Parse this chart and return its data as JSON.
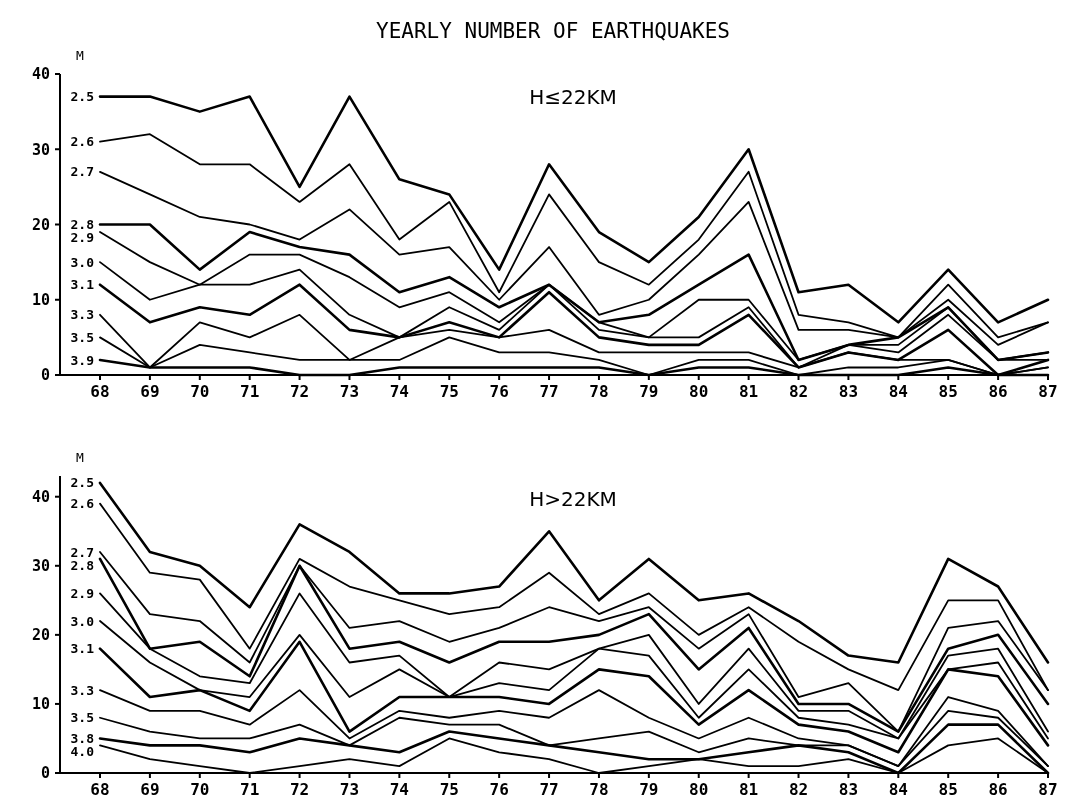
{
  "chart_data": [
    {
      "type": "line",
      "title": "YEARLY NUMBER OF EARTHQUAKES",
      "subtitle": "H≤22KM",
      "legend_title": "M",
      "categories": [
        "68",
        "69",
        "70",
        "71",
        "72",
        "73",
        "74",
        "75",
        "76",
        "77",
        "78",
        "79",
        "80",
        "81",
        "82",
        "83",
        "84",
        "85",
        "86",
        "87"
      ],
      "ylim": [
        0,
        40
      ],
      "yticks": [
        0,
        10,
        20,
        30,
        40
      ],
      "grid": false,
      "series": [
        {
          "name": "2.5",
          "color": "#000000",
          "values": [
            37,
            37,
            35,
            37,
            25,
            37,
            26,
            24,
            14,
            28,
            19,
            15,
            21,
            30,
            11,
            12,
            7,
            14,
            7,
            10
          ]
        },
        {
          "name": "2.6",
          "color": "#000000",
          "values": [
            31,
            32,
            28,
            28,
            23,
            28,
            18,
            23,
            11,
            24,
            15,
            12,
            18,
            27,
            8,
            7,
            5,
            12,
            5,
            7
          ]
        },
        {
          "name": "2.7",
          "color": "#000000",
          "values": [
            27,
            24,
            21,
            20,
            18,
            22,
            16,
            17,
            10,
            17,
            8,
            10,
            16,
            23,
            6,
            6,
            5,
            10,
            4,
            7
          ]
        },
        {
          "name": "2.8",
          "color": "#000000",
          "values": [
            20,
            20,
            14,
            19,
            17,
            16,
            11,
            13,
            9,
            12,
            7,
            8,
            12,
            16,
            2,
            4,
            5,
            9,
            2,
            3
          ]
        },
        {
          "name": "2.9",
          "color": "#000000",
          "values": [
            19,
            15,
            12,
            16,
            16,
            13,
            9,
            11,
            7,
            12,
            7,
            5,
            10,
            10,
            2,
            4,
            4,
            9,
            2,
            3
          ]
        },
        {
          "name": "3.0",
          "color": "#000000",
          "values": [
            15,
            10,
            12,
            12,
            14,
            8,
            5,
            9,
            6,
            12,
            6,
            5,
            5,
            9,
            1,
            4,
            3,
            8,
            2,
            2
          ]
        },
        {
          "name": "3.1",
          "color": "#000000",
          "values": [
            12,
            7,
            9,
            8,
            12,
            6,
            5,
            7,
            5,
            11,
            5,
            4,
            4,
            8,
            1,
            3,
            2,
            6,
            0,
            2
          ]
        },
        {
          "name": "3.3",
          "color": "#000000",
          "values": [
            8,
            1,
            7,
            5,
            8,
            2,
            5,
            6,
            5,
            6,
            3,
            3,
            3,
            3,
            1,
            3,
            2,
            2,
            0,
            1
          ]
        },
        {
          "name": "3.5",
          "color": "#000000",
          "values": [
            5,
            1,
            4,
            3,
            2,
            2,
            2,
            5,
            3,
            3,
            2,
            0,
            2,
            2,
            0,
            1,
            1,
            2,
            0,
            1
          ]
        },
        {
          "name": "3.9",
          "color": "#000000",
          "values": [
            2,
            1,
            1,
            1,
            0,
            0,
            1,
            1,
            1,
            1,
            1,
            0,
            1,
            1,
            0,
            0,
            0,
            1,
            0,
            0
          ]
        }
      ]
    },
    {
      "type": "line",
      "subtitle": "H>22KM",
      "legend_title": "M",
      "categories": [
        "68",
        "69",
        "70",
        "71",
        "72",
        "73",
        "74",
        "75",
        "76",
        "77",
        "78",
        "79",
        "80",
        "81",
        "82",
        "83",
        "84",
        "85",
        "86",
        "87"
      ],
      "ylim": [
        0,
        43
      ],
      "yticks": [
        0,
        10,
        20,
        30,
        40
      ],
      "grid": false,
      "series": [
        {
          "name": "2.5",
          "color": "#000000",
          "values": [
            42,
            32,
            30,
            24,
            36,
            32,
            26,
            26,
            27,
            35,
            25,
            31,
            25,
            26,
            22,
            17,
            16,
            31,
            27,
            16
          ]
        },
        {
          "name": "2.6",
          "color": "#000000",
          "values": [
            39,
            29,
            28,
            18,
            31,
            27,
            25,
            23,
            24,
            29,
            23,
            26,
            20,
            24,
            19,
            15,
            12,
            25,
            25,
            12
          ]
        },
        {
          "name": "2.7",
          "color": "#000000",
          "values": [
            32,
            23,
            22,
            16,
            30,
            21,
            22,
            19,
            21,
            24,
            22,
            24,
            18,
            23,
            11,
            13,
            6,
            21,
            22,
            12
          ]
        },
        {
          "name": "2.8",
          "color": "#000000",
          "values": [
            31,
            18,
            19,
            14,
            30,
            18,
            19,
            16,
            19,
            19,
            20,
            23,
            15,
            21,
            10,
            10,
            6,
            18,
            20,
            10
          ]
        },
        {
          "name": "2.9",
          "color": "#000000",
          "values": [
            26,
            18,
            14,
            13,
            26,
            16,
            17,
            11,
            16,
            15,
            18,
            20,
            10,
            18,
            9,
            9,
            5,
            17,
            18,
            6
          ]
        },
        {
          "name": "3.0",
          "color": "#000000",
          "values": [
            22,
            16,
            12,
            11,
            20,
            11,
            15,
            11,
            13,
            12,
            18,
            17,
            8,
            15,
            8,
            7,
            5,
            15,
            16,
            5
          ]
        },
        {
          "name": "3.1",
          "color": "#000000",
          "values": [
            18,
            11,
            12,
            9,
            19,
            6,
            11,
            11,
            11,
            10,
            15,
            14,
            7,
            12,
            7,
            6,
            3,
            15,
            14,
            4
          ]
        },
        {
          "name": "3.3",
          "color": "#000000",
          "values": [
            12,
            9,
            9,
            7,
            12,
            5,
            9,
            8,
            9,
            8,
            12,
            8,
            5,
            8,
            5,
            4,
            1,
            11,
            9,
            1
          ]
        },
        {
          "name": "3.5",
          "color": "#000000",
          "values": [
            8,
            6,
            5,
            5,
            7,
            4,
            8,
            7,
            7,
            4,
            5,
            6,
            3,
            5,
            4,
            4,
            1,
            9,
            8,
            1
          ]
        },
        {
          "name": "3.8",
          "color": "#000000",
          "values": [
            5,
            4,
            4,
            3,
            5,
            4,
            3,
            6,
            5,
            4,
            3,
            2,
            2,
            3,
            4,
            3,
            0,
            7,
            7,
            0
          ]
        },
        {
          "name": "4.0",
          "color": "#000000",
          "values": [
            4,
            2,
            1,
            0,
            1,
            2,
            1,
            5,
            3,
            2,
            0,
            1,
            2,
            1,
            1,
            2,
            0,
            4,
            5,
            0
          ]
        }
      ]
    }
  ]
}
